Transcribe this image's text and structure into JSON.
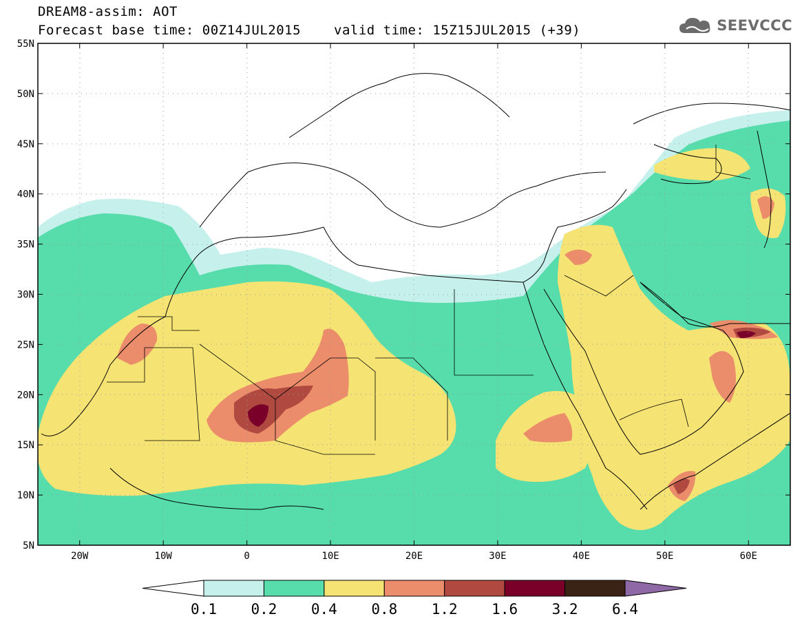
{
  "title": {
    "line1": "DREAM8-assim: AOT",
    "base_time": "Forecast base time: 00Z14JUL2015",
    "valid_time": "valid time: 15Z15JUL2015 (+39)"
  },
  "logo": {
    "text": "SEEVCCC",
    "icon": "cloud-icon",
    "color": "#6b6b6b"
  },
  "map": {
    "lon_range": [
      -25,
      65
    ],
    "lat_range": [
      5,
      55
    ],
    "x_ticks": [
      {
        "value": -20,
        "label": "20W"
      },
      {
        "value": -10,
        "label": "10W"
      },
      {
        "value": 0,
        "label": "0"
      },
      {
        "value": 10,
        "label": "10E"
      },
      {
        "value": 20,
        "label": "20E"
      },
      {
        "value": 30,
        "label": "30E"
      },
      {
        "value": 40,
        "label": "40E"
      },
      {
        "value": 50,
        "label": "50E"
      },
      {
        "value": 60,
        "label": "60E"
      }
    ],
    "y_ticks": [
      {
        "value": 55,
        "label": "55N"
      },
      {
        "value": 50,
        "label": "50N"
      },
      {
        "value": 45,
        "label": "45N"
      },
      {
        "value": 40,
        "label": "40N"
      },
      {
        "value": 35,
        "label": "35N"
      },
      {
        "value": 30,
        "label": "30N"
      },
      {
        "value": 25,
        "label": "25N"
      },
      {
        "value": 20,
        "label": "20N"
      },
      {
        "value": 15,
        "label": "15N"
      },
      {
        "value": 10,
        "label": "10N"
      },
      {
        "value": 5,
        "label": "5N"
      }
    ],
    "grid": "dotted"
  },
  "colorbar": {
    "levels": [
      {
        "color": "#c6f0ec"
      },
      {
        "color": "#57dcac"
      },
      {
        "color": "#f5e374"
      },
      {
        "color": "#eb8c6a"
      },
      {
        "color": "#b04a40"
      },
      {
        "color": "#7a0029"
      },
      {
        "color": "#3a2214"
      }
    ],
    "low_end_color": "#ffffff",
    "high_end_color": "#8e69a6",
    "labels": [
      "0.1",
      "0.2",
      "0.4",
      "0.8",
      "1.2",
      "1.6",
      "3.2",
      "6.4"
    ]
  }
}
